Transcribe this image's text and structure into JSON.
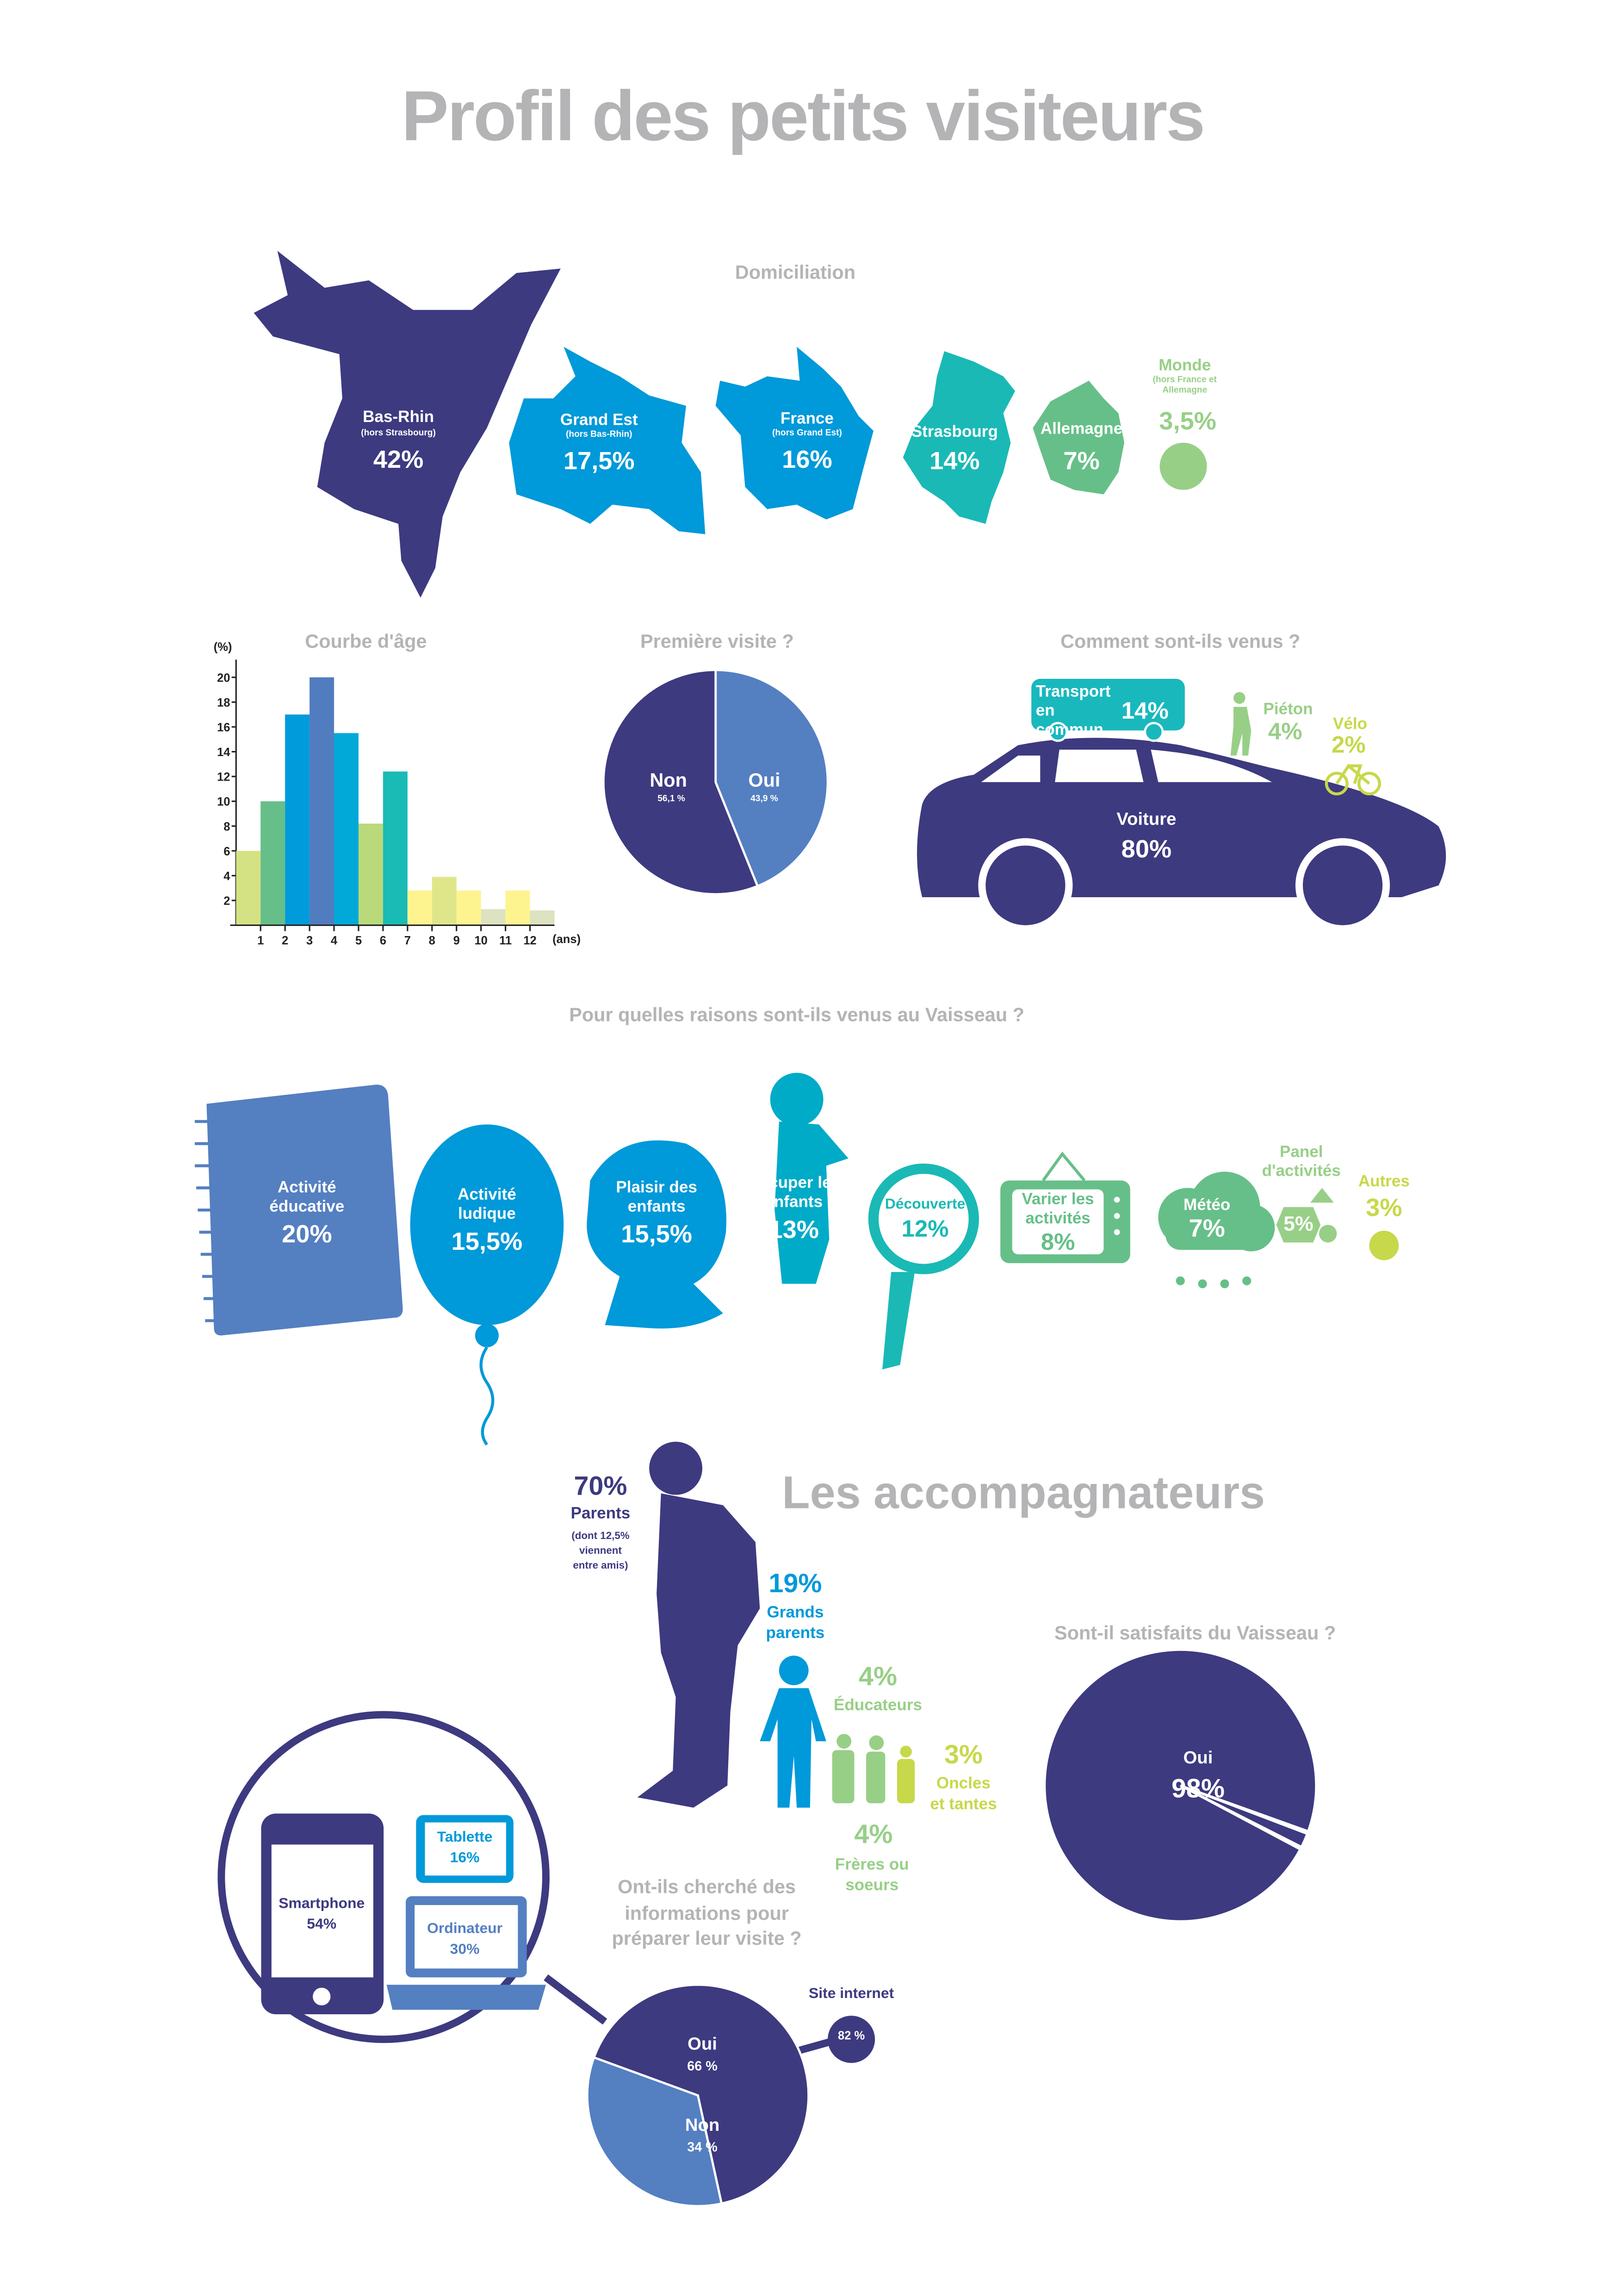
{
  "title": "Profil des petits visiteurs",
  "colors": {
    "purple": "#3d3a80",
    "blue": "#0099d9",
    "steel": "#547fc1",
    "teal": "#1ab9b5",
    "green": "#66bf88",
    "lightgreen": "#98cf87",
    "lime": "#c7d84a",
    "grey": "#b4b4b6"
  },
  "domiciliation": {
    "title": "Domiciliation",
    "items": [
      {
        "name": "Bas-Rhin",
        "sub": "(hors Strasbourg)",
        "pct": "42%"
      },
      {
        "name": "Grand Est",
        "sub": "(hors Bas-Rhin)",
        "pct": "17,5%"
      },
      {
        "name": "France",
        "sub": "(hors Grand Est)",
        "pct": "16%"
      },
      {
        "name": "Strasbourg",
        "pct": "14%"
      },
      {
        "name": "Allemagne",
        "pct": "7%"
      },
      {
        "name": "Monde",
        "sub": "(hors France et Allemagne",
        "pct": "3,5%"
      }
    ]
  },
  "chart_data": [
    {
      "type": "bar",
      "title": "Courbe d'âge",
      "ylabel": "(%)",
      "xlabel": "(ans)",
      "ylim": [
        0,
        20
      ],
      "yticks": [
        2,
        4,
        6,
        8,
        10,
        12,
        14,
        16,
        18,
        20
      ],
      "xticks": [
        "1",
        "2",
        "3",
        "4",
        "5",
        "6",
        "7",
        "8",
        "9",
        "10",
        "11",
        "12"
      ],
      "bins": [
        "0-1",
        "1-2",
        "2-3",
        "3-4",
        "4-5",
        "5-6",
        "6-7",
        "7-8",
        "8-9",
        "9-10",
        "10-11",
        "11-12",
        "12+"
      ],
      "values": [
        6,
        10,
        17,
        20,
        15.5,
        8.2,
        12.4,
        2.8,
        3.9,
        2.8,
        1.3,
        2.8,
        1.2
      ],
      "bar_colors": [
        "#d4e283",
        "#66bf88",
        "#009bdb",
        "#527cc0",
        "#00a9d8",
        "#bad97a",
        "#1abab5",
        "#fdf490",
        "#dfe68a",
        "#fdf490",
        "#dde2c0",
        "#fdf490",
        "#dde2c0"
      ]
    },
    {
      "type": "pie",
      "title": "Première visite ?",
      "slices": [
        {
          "label": "Oui",
          "value": 43.9,
          "text": "43,9 %",
          "color": "#547fc1"
        },
        {
          "label": "Non",
          "value": 56.1,
          "text": "56,1 %",
          "color": "#3d3a80"
        }
      ]
    },
    {
      "type": "pie",
      "title": "Sont-il satisfaits du Vaisseau ?",
      "slices": [
        {
          "label": "Oui",
          "value": 98,
          "text": "98%",
          "color": "#3d3a80"
        },
        {
          "label": "",
          "value": 2,
          "color": "#3d3a80"
        }
      ]
    },
    {
      "type": "pie",
      "title": "Ont-ils cherché des informations pour préparer leur visite ?",
      "slices": [
        {
          "label": "Oui",
          "value": 66,
          "text": "66 %",
          "color": "#3d3a80"
        },
        {
          "label": "Non",
          "value": 34,
          "text": "34 %",
          "color": "#547fc1"
        }
      ]
    }
  ],
  "transport": {
    "title": "Comment sont-ils venus ?",
    "bus": {
      "label": "Transport en commun",
      "pct": "14%"
    },
    "walk": {
      "label": "Piéton",
      "pct": "4%"
    },
    "bike": {
      "label": "Vélo",
      "pct": "2%"
    },
    "car": {
      "label": "Voiture",
      "pct": "80%"
    }
  },
  "reasons": {
    "title": "Pour quelles raisons sont-ils venus au Vaisseau ?",
    "items": [
      {
        "label": "Activité éducative",
        "pct": "20%"
      },
      {
        "label": "Activité ludique",
        "pct": "15,5%"
      },
      {
        "label": "Plaisir des enfants",
        "pct": "15,5%"
      },
      {
        "label": "Occuper les enfants",
        "pct": "13%"
      },
      {
        "label": "Découverte",
        "pct": "12%"
      },
      {
        "label": "Varier les activités",
        "pct": "8%"
      },
      {
        "label": "Météo",
        "pct": "7%"
      },
      {
        "label": "Panel d'activités",
        "pct": "5%"
      },
      {
        "label": "Autres",
        "pct": "3%"
      }
    ]
  },
  "accomp": {
    "title": "Les accompagnateurs",
    "parents": {
      "pct": "70%",
      "label": "Parents",
      "note1": "(dont 12,5%",
      "note2": "viennent",
      "note3": "entre amis)"
    },
    "grands": {
      "pct": "19%",
      "l1": "Grands",
      "l2": "parents"
    },
    "educ": {
      "pct": "4%",
      "label": "Éducateurs"
    },
    "oncles": {
      "pct": "3%",
      "l1": "Oncles",
      "l2": "et tantes"
    },
    "freres": {
      "pct": "4%",
      "l1": "Frères ou",
      "l2": "soeurs"
    }
  },
  "info": {
    "q1": "Ont-ils cherché des",
    "q2": "informations pour",
    "q3": "préparer leur visite ?",
    "site": {
      "label": "Site internet",
      "pct": "82 %"
    },
    "devices": [
      {
        "label": "Smartphone",
        "pct": "54%"
      },
      {
        "label": "Tablette",
        "pct": "16%"
      },
      {
        "label": "Ordinateur",
        "pct": "30%"
      }
    ]
  }
}
